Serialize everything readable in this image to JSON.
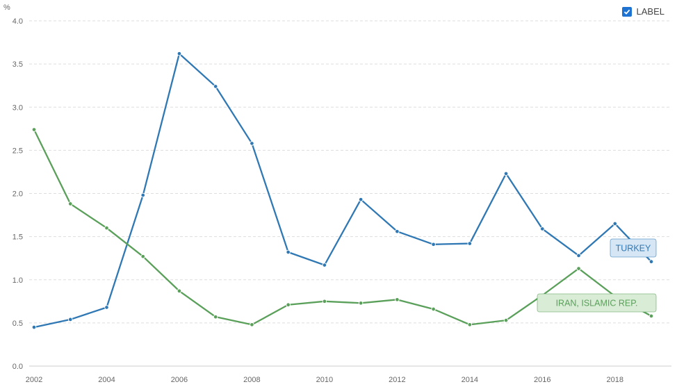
{
  "legend": {
    "label": "LABEL",
    "checked": true
  },
  "chart_data": {
    "type": "line",
    "unit_label": "%",
    "x": [
      2002,
      2003,
      2004,
      2005,
      2006,
      2007,
      2008,
      2009,
      2010,
      2011,
      2012,
      2013,
      2014,
      2015,
      2016,
      2017,
      2018,
      2019
    ],
    "x_ticks": [
      "2002",
      "2004",
      "2006",
      "2008",
      "2010",
      "2012",
      "2014",
      "2016",
      "2018"
    ],
    "y_ticks": [
      "0.0",
      "0.5",
      "1.0",
      "1.5",
      "2.0",
      "2.5",
      "3.0",
      "3.5",
      "4.0"
    ],
    "ylim": [
      0,
      4
    ],
    "grid": true,
    "series": [
      {
        "name": "TURKEY",
        "color": "#2f78b4",
        "label_fill": "#d6e6f5",
        "values": [
          0.45,
          0.54,
          0.68,
          1.98,
          3.62,
          3.24,
          2.58,
          1.32,
          1.17,
          1.93,
          1.56,
          1.41,
          1.42,
          2.23,
          1.59,
          1.28,
          1.65,
          1.21
        ]
      },
      {
        "name": "IRAN, ISLAMIC REP.",
        "color": "#5aa05a",
        "label_fill": "#d9ecd6",
        "values": [
          2.74,
          1.88,
          1.6,
          1.27,
          0.87,
          0.57,
          0.48,
          0.71,
          0.75,
          0.73,
          0.77,
          0.66,
          0.48,
          0.53,
          0.82,
          1.13,
          0.81,
          0.58
        ]
      }
    ]
  }
}
